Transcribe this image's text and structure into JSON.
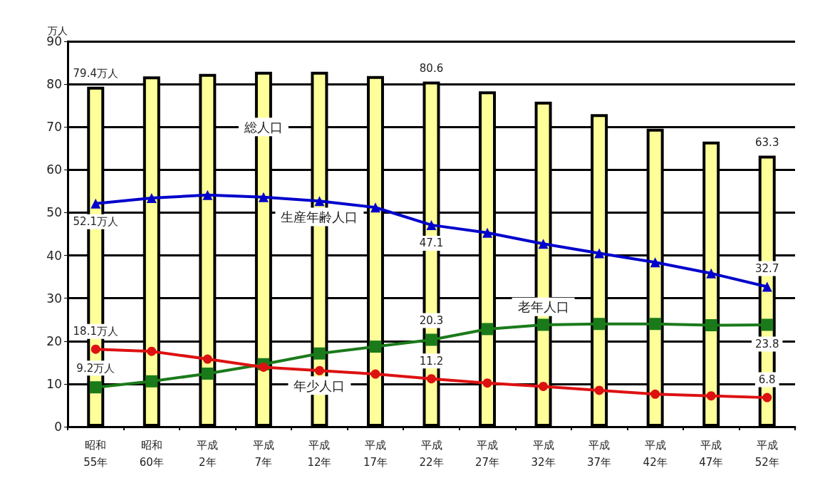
{
  "chart_data": {
    "type": "bar",
    "ylabel": "万人",
    "categories": [
      "昭和55年",
      "昭和60年",
      "平成2年",
      "平成7年",
      "平成12年",
      "平成17年",
      "平成22年",
      "平成27年",
      "平成32年",
      "平成37年",
      "平成42年",
      "平成47年",
      "平成52年"
    ],
    "series": [
      {
        "name": "総人口",
        "color": "#ffff99",
        "values": [
          79.4,
          81.8,
          82.4,
          82.9,
          82.9,
          81.9,
          80.6,
          78.3,
          75.9,
          73.0,
          69.6,
          66.6,
          63.3
        ],
        "value_labels": [
          "79.4万人",
          null,
          null,
          null,
          null,
          null,
          "80.6",
          null,
          null,
          null,
          null,
          null,
          "63.3"
        ]
      },
      {
        "name": "生産年齢人口",
        "type": "line",
        "marker": "triangle",
        "color": "#0000cc",
        "values": [
          52.1,
          53.4,
          54.1,
          53.6,
          52.7,
          51.2,
          47.1,
          45.3,
          42.7,
          40.5,
          38.4,
          35.8,
          32.7
        ],
        "value_labels": [
          "52.1万人",
          null,
          null,
          null,
          null,
          null,
          "47.1",
          null,
          null,
          null,
          null,
          null,
          "32.7"
        ]
      },
      {
        "name": "老年人口",
        "type": "line",
        "marker": "square",
        "color": "#1a7a1a",
        "values": [
          9.2,
          10.6,
          12.4,
          14.6,
          17.1,
          18.7,
          20.3,
          22.8,
          23.8,
          24.0,
          24.0,
          23.7,
          23.8
        ],
        "value_labels": [
          "9.2万人",
          null,
          null,
          null,
          null,
          null,
          "20.3",
          null,
          null,
          null,
          null,
          null,
          "23.8"
        ]
      },
      {
        "name": "年少人口",
        "type": "line",
        "marker": "circle",
        "color": "#dd1111",
        "values": [
          18.1,
          17.6,
          15.8,
          13.9,
          13.1,
          12.3,
          11.2,
          10.2,
          9.4,
          8.5,
          7.6,
          7.2,
          6.8
        ],
        "value_labels": [
          "18.1万人",
          null,
          null,
          null,
          null,
          null,
          "11.2",
          null,
          null,
          null,
          null,
          null,
          "6.8"
        ]
      }
    ],
    "ylim": [
      0,
      90
    ],
    "yticks": [
      0,
      10,
      20,
      30,
      40,
      50,
      60,
      70,
      80,
      90
    ],
    "grid": "y",
    "legend": false
  }
}
